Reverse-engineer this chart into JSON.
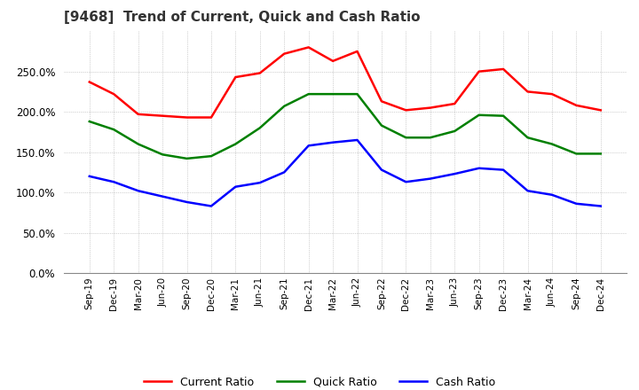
{
  "title": "[9468]  Trend of Current, Quick and Cash Ratio",
  "x_labels": [
    "Sep-19",
    "Dec-19",
    "Mar-20",
    "Jun-20",
    "Sep-20",
    "Dec-20",
    "Mar-21",
    "Jun-21",
    "Sep-21",
    "Dec-21",
    "Mar-22",
    "Jun-22",
    "Sep-22",
    "Dec-22",
    "Mar-23",
    "Jun-23",
    "Sep-23",
    "Dec-23",
    "Mar-24",
    "Jun-24",
    "Sep-24",
    "Dec-24"
  ],
  "current_ratio": [
    237,
    222,
    197,
    195,
    193,
    193,
    243,
    248,
    272,
    280,
    263,
    275,
    213,
    202,
    205,
    210,
    250,
    253,
    225,
    222,
    208,
    202
  ],
  "quick_ratio": [
    188,
    178,
    160,
    147,
    142,
    145,
    160,
    180,
    207,
    222,
    222,
    222,
    183,
    168,
    168,
    176,
    196,
    195,
    168,
    160,
    148,
    148
  ],
  "cash_ratio": [
    120,
    113,
    102,
    95,
    88,
    83,
    107,
    112,
    125,
    158,
    162,
    165,
    128,
    113,
    117,
    123,
    130,
    128,
    102,
    97,
    86,
    83
  ],
  "current_color": "#ff0000",
  "quick_color": "#008000",
  "cash_color": "#0000ff",
  "ylim": [
    0,
    300
  ],
  "yticks": [
    0,
    50,
    100,
    150,
    200,
    250
  ],
  "background_color": "#ffffff",
  "grid_color": "#aaaaaa",
  "title_fontsize": 11,
  "line_width": 1.8
}
